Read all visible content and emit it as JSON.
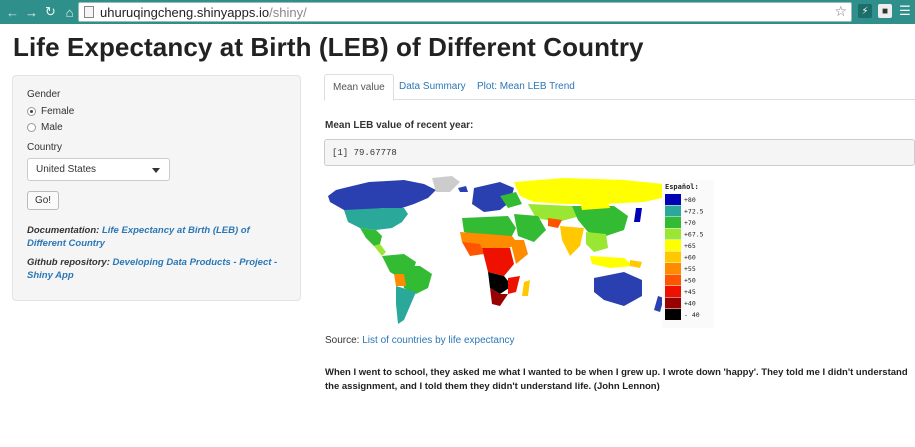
{
  "browser": {
    "url_host": "uhuruqingcheng.shinyapps.io",
    "url_path": "/shiny/"
  },
  "page": {
    "title": "Life Expectancy at Birth (LEB) of Different Country"
  },
  "sidebar": {
    "gender_label": "Gender",
    "gender_options": [
      {
        "label": "Female",
        "selected": true
      },
      {
        "label": "Male",
        "selected": false
      }
    ],
    "country_label": "Country",
    "country_value": "United States",
    "go_label": "Go!",
    "doc_prefix": "Documentation:",
    "doc_link": "Life Expectancy at Birth (LEB) of Different Country",
    "repo_prefix": "Github repository:",
    "repo_link": "Developing Data Products - Project - Shiny App"
  },
  "tabs": [
    {
      "label": "Mean value",
      "active": true
    },
    {
      "label": "Data Summary",
      "active": false
    },
    {
      "label": "Plot: Mean LEB Trend",
      "active": false
    }
  ],
  "main": {
    "heading": "Mean LEB value of recent year:",
    "output": "[1] 79.67778",
    "map_legend_title": "Español:",
    "map_legend": [
      {
        "label": "+80",
        "color": "#0000b4"
      },
      {
        "label": "+72.5",
        "color": "#2aa89a"
      },
      {
        "label": "+70",
        "color": "#33bb33"
      },
      {
        "label": "+67.5",
        "color": "#99e633"
      },
      {
        "label": "+65",
        "color": "#ffff00"
      },
      {
        "label": "+60",
        "color": "#ffc800"
      },
      {
        "label": "+55",
        "color": "#ff8c00"
      },
      {
        "label": "+50",
        "color": "#ff5500"
      },
      {
        "label": "+45",
        "color": "#ee1100"
      },
      {
        "label": "+40",
        "color": "#990000"
      },
      {
        "label": "- 40",
        "color": "#000000"
      }
    ],
    "source_prefix": "Source:",
    "source_link": "List of countries by life expectancy",
    "quote": "When I went to school, they asked me what I wanted to be when I grew up. I wrote down 'happy'. They told me I didn't understand the assignment, and I told them they didn't understand life. (John Lennon)"
  }
}
